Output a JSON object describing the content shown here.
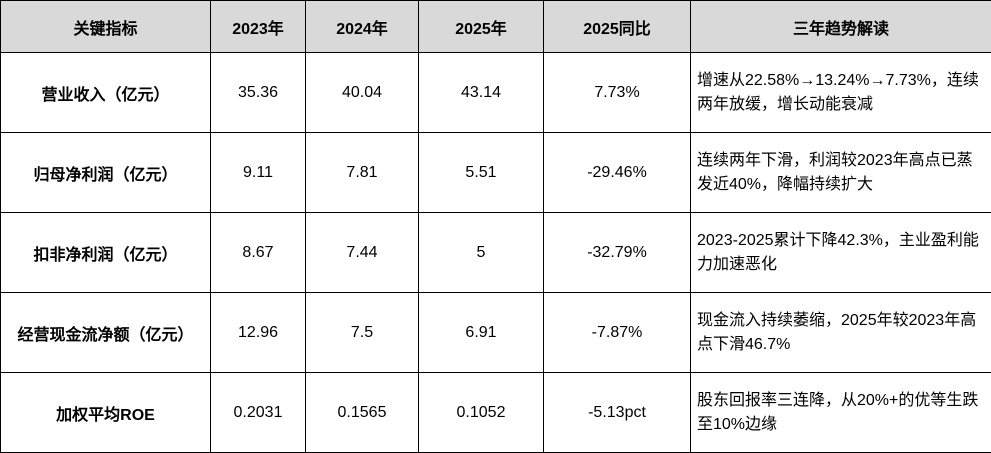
{
  "table": {
    "header": [
      "关键指标",
      "2023年",
      "2024年",
      "2025年",
      "2025同比",
      "三年趋势解读"
    ],
    "rows": [
      [
        "营业收入（亿元）",
        "35.36",
        "40.04",
        "43.14",
        "7.73%",
        "增速从22.58%→13.24%→7.73%，连续两年放缓，增长动能衰减"
      ],
      [
        "归母净利润（亿元）",
        "9.11",
        "7.81",
        "5.51",
        "-29.46%",
        "连续两年下滑，利润较2023年高点已蒸发近40%，降幅持续扩大"
      ],
      [
        "扣非净利润（亿元）",
        "8.67",
        "7.44",
        "5",
        "-32.79%",
        "2023-2025累计下降42.3%，主业盈利能力加速恶化"
      ],
      [
        "经营现金流净额（亿元）",
        "12.96",
        "7.5",
        "6.91",
        "-7.87%",
        "现金流入持续萎缩，2025年较2023年高点下滑46.7%"
      ],
      [
        "加权平均ROE",
        "0.2031",
        "0.1565",
        "0.1052",
        "-5.13pct",
        "股东回报率三连降，从20%+的优等生跌至10%边缘"
      ]
    ]
  }
}
